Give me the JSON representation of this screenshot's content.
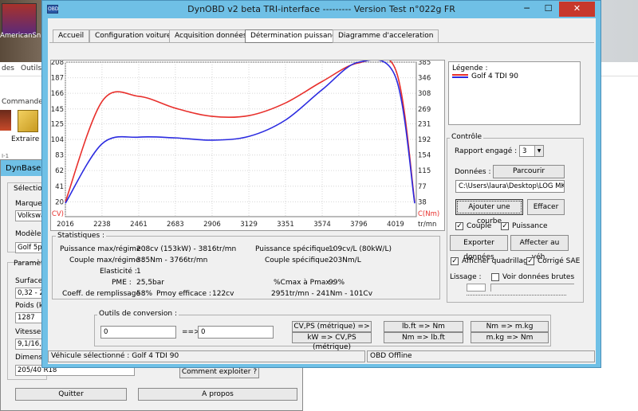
{
  "desktop": {
    "icon_label": "AmericanSn",
    "menu_partial": [
      "des",
      "Outils"
    ],
    "commands_label": "Commande",
    "extract_label": "Extraire ve",
    "lv_label": "I-1"
  },
  "dynbase": {
    "title": "DynBase",
    "selection_label": "Sélection",
    "marque_label": "Marque :",
    "marque_value": "Volkswa",
    "modele_label": "Modèle :",
    "modele_value": "Golf 5p",
    "params_label": "Paramètre",
    "surface_label": "Surface f",
    "surface_value": "0,32 - 2,",
    "poids_label": "Poids (kg",
    "poids_value": "1287",
    "vitesse_label": "Vitesse à",
    "vitesse_value": "9,1/16,6",
    "dim_label": "Dimensio",
    "dim_value": "205/40 R18",
    "explain_button": "Comment exploiter ?",
    "quit_button": "Quitter",
    "about_button": "A propos"
  },
  "window": {
    "title": "DynOBD v2 beta TRI-interface --------- Version Test n°022g FR",
    "icon_text": "OBD",
    "min": "─",
    "max": "☐",
    "close": "✕"
  },
  "tabs": [
    {
      "label": "Accueil",
      "active": false
    },
    {
      "label": "Configuration voitures",
      "active": false
    },
    {
      "label": "Acquisition données",
      "active": false
    },
    {
      "label": "Détermination puissance",
      "active": true
    },
    {
      "label": "Diagramme d'acceleration",
      "active": false
    }
  ],
  "chart_data": {
    "type": "line",
    "x": [
      2016,
      2238,
      2461,
      2683,
      2906,
      3129,
      3351,
      3574,
      3796,
      4019
    ],
    "x_ticks": [
      "2016",
      "2238",
      "2461",
      "2683",
      "2906",
      "3129",
      "3351",
      "3574",
      "3796",
      "4019"
    ],
    "xlabel": "tr/mn",
    "xlim": [
      2016,
      4019
    ],
    "y_left_ticks": [
      "208",
      "187",
      "166",
      "145",
      "125",
      "104",
      "83",
      "62",
      "41",
      "20"
    ],
    "y_left_label": "P(CV)",
    "y_left_range": [
      0,
      208
    ],
    "y_right_ticks": [
      "385",
      "346",
      "308",
      "269",
      "231",
      "192",
      "154",
      "115",
      "77",
      "38"
    ],
    "y_right_label": "C(Nm)",
    "y_right_range": [
      0,
      385
    ],
    "grid": true,
    "series": [
      {
        "name": "Puissance",
        "color": "#e8302c",
        "values": [
          20,
          155,
          162,
          146,
          135,
          136,
          153,
          182,
          207,
          198
        ]
      },
      {
        "name": "Couple",
        "color": "#2b2be0",
        "values": [
          18,
          98,
          107,
          106,
          103,
          108,
          130,
          171,
          208,
          188
        ]
      }
    ]
  },
  "legend": {
    "title": "Légende :",
    "entry": "Golf 4 TDI 90",
    "colors": [
      "#e8302c",
      "#2b2be0"
    ]
  },
  "controle": {
    "title": "Contrôle",
    "rapport_label": "Rapport engagé :",
    "rapport_value": "3",
    "donnees_label": "Données :",
    "parcourir": "Parcourir",
    "path": "C:\\Users\\laura\\Desktop\\LOG MK-",
    "ajouter": "Ajouter une courbe",
    "effacer": "Effacer",
    "exporter": "Exporter données",
    "affecter": "Affecter au véh.",
    "afficher_quad": "Afficher quadrillage",
    "corrige_sae": "Corrigé SAE",
    "lissage_label": "Lissage :",
    "voir_brutes": "Voir données brutes",
    "couple_label": "Couple",
    "puissance_label": "Puissance",
    "check_mark": "✓"
  },
  "stats": {
    "title": "Statistiques :",
    "pmax_label": "Puissance max/régime :",
    "pmax_value": "208cv (153kW) - 3816tr/mn",
    "cmax_label": "Couple max/régime :",
    "cmax_value": "385Nm - 3766tr/mn",
    "elast_label": "Elasticité :",
    "elast_value": "1",
    "pme_label": "PME :",
    "pme_value": "25,5bar",
    "coef_label": "Coeff. de remplissage :",
    "coef_value": "58%",
    "pmoy_label": "Pmoy efficace :",
    "pmoy_value": "122cv",
    "pspec_label": "Puissance spécifique :",
    "pspec_value": "109cv/L (80kW/L)",
    "cspec_label": "Couple spécifique :",
    "cspec_value": "203Nm/L",
    "ratio_label": "%Cmax à Pmax :",
    "ratio_value": "99%",
    "ratio_detail": "2951tr/mn - 241Nm - 101Cv"
  },
  "conversion": {
    "title": "Outils de conversion :",
    "input_value": "0",
    "arrow": "==>",
    "output_value": "0",
    "btn1": "CV,PS (métrique) => kW",
    "btn2": "kW => CV,PS (métrique)",
    "btn3": "lb.ft => Nm",
    "btn4": "Nm => lb.ft",
    "btn5": "Nm => m.kg",
    "btn6": "m.kg => Nm"
  },
  "status": {
    "vehicle": "Véhicule sélectionné : Golf 4 TDI 90",
    "obd": "OBD Offline"
  }
}
